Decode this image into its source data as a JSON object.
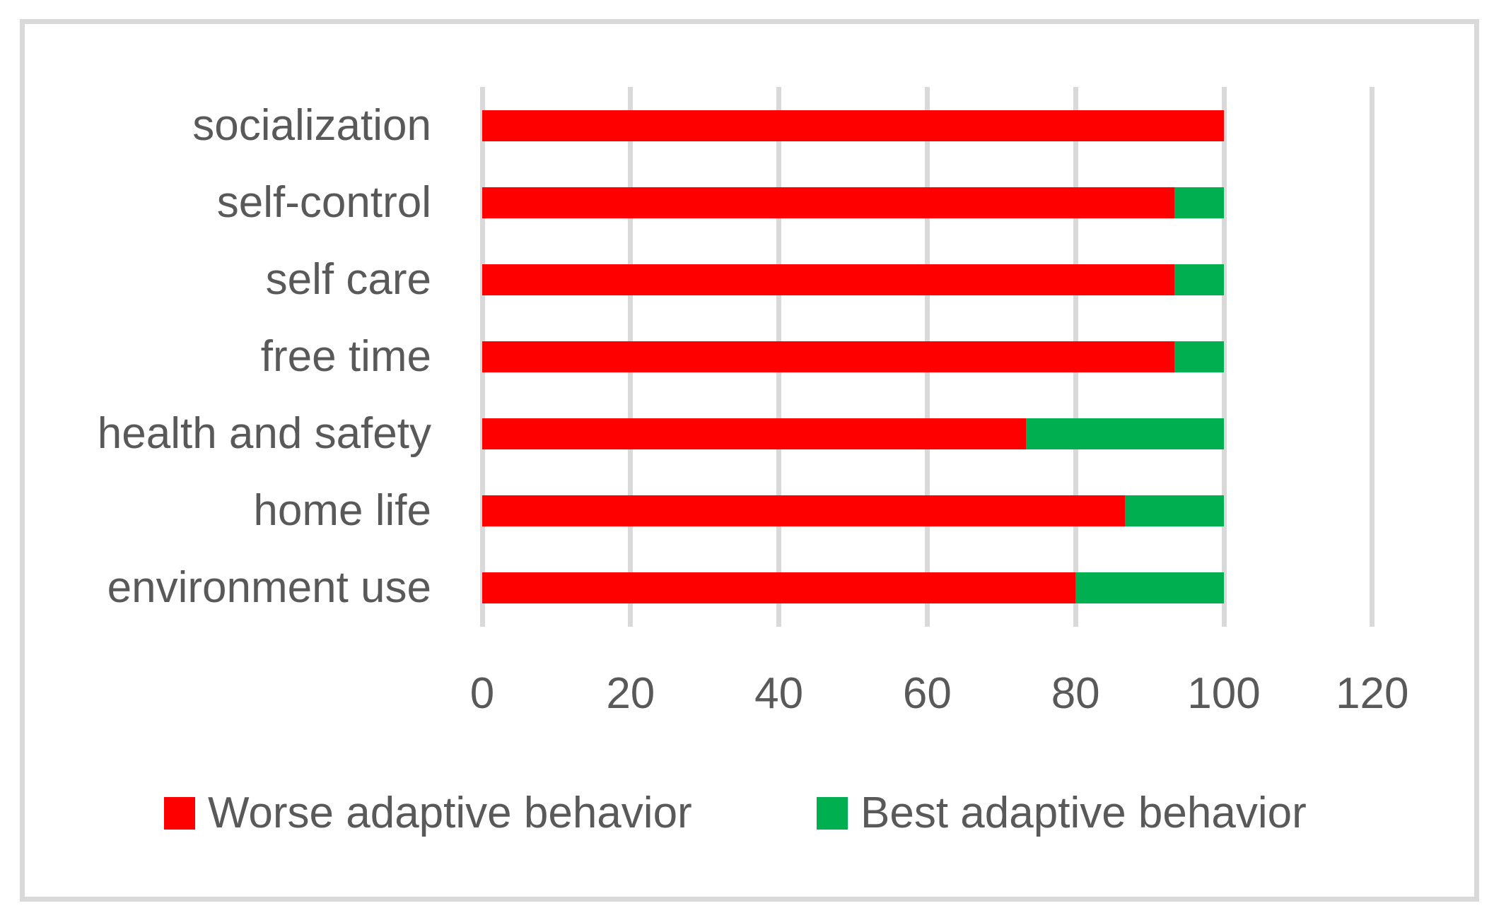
{
  "chart_data": {
    "type": "bar",
    "orientation": "horizontal",
    "stacked": true,
    "title": "",
    "xlabel": "",
    "ylabel": "",
    "categories": [
      "socialization",
      "self-control",
      "self care",
      "free time",
      "health and safety",
      "home life",
      "environment use"
    ],
    "series": [
      {
        "name": "Worse adaptive behavior",
        "color": "#FF0000",
        "values": [
          100,
          93.3,
          93.3,
          93.3,
          73.3,
          86.7,
          80
        ]
      },
      {
        "name": "Best adaptive behavior",
        "color": "#00B050",
        "values": [
          0,
          6.7,
          6.7,
          6.7,
          26.7,
          13.3,
          20
        ]
      }
    ],
    "x_ticks": [
      0,
      20,
      40,
      60,
      80,
      100,
      120
    ],
    "xlim": [
      0,
      120
    ],
    "grid": "vertical",
    "legend_position": "bottom",
    "colors": {
      "grid": "#D9D9D9",
      "frame": "#D9D9D9",
      "text": "#595959"
    }
  }
}
